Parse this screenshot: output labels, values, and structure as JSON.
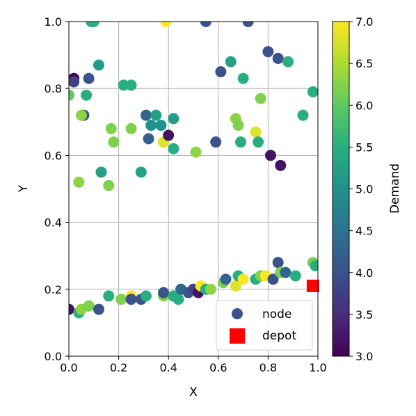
{
  "chart_data": {
    "type": "scatter",
    "xlabel": "X",
    "ylabel": "Y",
    "xlim": [
      0.0,
      1.0
    ],
    "ylim": [
      0.0,
      1.0
    ],
    "xticks": [
      "0.0",
      "0.2",
      "0.4",
      "0.6",
      "0.8",
      "1.0"
    ],
    "yticks": [
      "0.0",
      "0.2",
      "0.4",
      "0.6",
      "0.8",
      "1.0"
    ],
    "grid": true,
    "legend": {
      "position": "lower-right",
      "entries": [
        "node",
        "depot"
      ]
    },
    "colorbar": {
      "label": "Demand",
      "range": [
        3.0,
        7.0
      ],
      "ticks": [
        "3.0",
        "3.5",
        "4.0",
        "4.5",
        "5.0",
        "5.5",
        "6.0",
        "6.5",
        "7.0"
      ],
      "colormap": "viridis"
    },
    "depot": {
      "x": 0.98,
      "y": 0.21,
      "color": "#ff0000"
    },
    "series": [
      {
        "name": "node",
        "points": [
          {
            "x": 0.0,
            "y": 0.78,
            "d": 6.0
          },
          {
            "x": 0.02,
            "y": 0.83,
            "d": 3.0
          },
          {
            "x": 0.02,
            "y": 0.82,
            "d": 3.8
          },
          {
            "x": 0.06,
            "y": 0.72,
            "d": 3.9
          },
          {
            "x": 0.05,
            "y": 0.72,
            "d": 6.3
          },
          {
            "x": 0.08,
            "y": 0.83,
            "d": 4.0
          },
          {
            "x": 0.07,
            "y": 0.78,
            "d": 5.5
          },
          {
            "x": 0.09,
            "y": 1.0,
            "d": 5.5
          },
          {
            "x": 0.1,
            "y": 1.0,
            "d": 5.5
          },
          {
            "x": 0.12,
            "y": 0.87,
            "d": 5.2
          },
          {
            "x": 0.04,
            "y": 0.52,
            "d": 6.3
          },
          {
            "x": 0.13,
            "y": 0.55,
            "d": 5.3
          },
          {
            "x": 0.16,
            "y": 0.51,
            "d": 6.2
          },
          {
            "x": 0.17,
            "y": 0.68,
            "d": 6.2
          },
          {
            "x": 0.18,
            "y": 0.64,
            "d": 6.2
          },
          {
            "x": 0.22,
            "y": 0.81,
            "d": 5.5
          },
          {
            "x": 0.25,
            "y": 0.81,
            "d": 5.5
          },
          {
            "x": 0.25,
            "y": 0.68,
            "d": 6.2
          },
          {
            "x": 0.29,
            "y": 0.55,
            "d": 5.3
          },
          {
            "x": 0.31,
            "y": 0.72,
            "d": 4.3
          },
          {
            "x": 0.32,
            "y": 0.65,
            "d": 4.2
          },
          {
            "x": 0.33,
            "y": 0.69,
            "d": 5.0
          },
          {
            "x": 0.35,
            "y": 0.72,
            "d": 5.3
          },
          {
            "x": 0.37,
            "y": 0.69,
            "d": 5.0
          },
          {
            "x": 0.38,
            "y": 0.64,
            "d": 6.8
          },
          {
            "x": 0.4,
            "y": 0.66,
            "d": 3.2
          },
          {
            "x": 0.42,
            "y": 0.71,
            "d": 5.2
          },
          {
            "x": 0.42,
            "y": 0.62,
            "d": 5.5
          },
          {
            "x": 0.39,
            "y": 1.0,
            "d": 7.0
          },
          {
            "x": 0.55,
            "y": 1.0,
            "d": 4.0
          },
          {
            "x": 0.51,
            "y": 0.61,
            "d": 6.3
          },
          {
            "x": 0.59,
            "y": 0.64,
            "d": 4.0
          },
          {
            "x": 0.61,
            "y": 0.85,
            "d": 4.0
          },
          {
            "x": 0.65,
            "y": 0.88,
            "d": 5.3
          },
          {
            "x": 0.67,
            "y": 0.71,
            "d": 6.3
          },
          {
            "x": 0.68,
            "y": 0.69,
            "d": 6.2
          },
          {
            "x": 0.69,
            "y": 0.64,
            "d": 5.5
          },
          {
            "x": 0.7,
            "y": 0.83,
            "d": 5.5
          },
          {
            "x": 0.72,
            "y": 1.0,
            "d": 4.0
          },
          {
            "x": 0.75,
            "y": 0.67,
            "d": 6.8
          },
          {
            "x": 0.77,
            "y": 0.77,
            "d": 6.2
          },
          {
            "x": 0.76,
            "y": 0.64,
            "d": 5.5
          },
          {
            "x": 0.8,
            "y": 0.91,
            "d": 4.0
          },
          {
            "x": 0.81,
            "y": 0.6,
            "d": 3.2
          },
          {
            "x": 0.84,
            "y": 0.89,
            "d": 4.0
          },
          {
            "x": 0.88,
            "y": 0.88,
            "d": 5.5
          },
          {
            "x": 0.85,
            "y": 0.57,
            "d": 3.2
          },
          {
            "x": 0.94,
            "y": 0.72,
            "d": 5.5
          },
          {
            "x": 0.98,
            "y": 0.79,
            "d": 5.5
          },
          {
            "x": 0.0,
            "y": 0.14,
            "d": 3.2
          },
          {
            "x": 0.04,
            "y": 0.13,
            "d": 5.5
          },
          {
            "x": 0.05,
            "y": 0.14,
            "d": 6.3
          },
          {
            "x": 0.08,
            "y": 0.15,
            "d": 5.5
          },
          {
            "x": 0.08,
            "y": 0.15,
            "d": 6.2
          },
          {
            "x": 0.12,
            "y": 0.14,
            "d": 4.0
          },
          {
            "x": 0.16,
            "y": 0.18,
            "d": 5.5
          },
          {
            "x": 0.21,
            "y": 0.17,
            "d": 6.2
          },
          {
            "x": 0.25,
            "y": 0.18,
            "d": 7.0
          },
          {
            "x": 0.25,
            "y": 0.17,
            "d": 4.0
          },
          {
            "x": 0.29,
            "y": 0.17,
            "d": 4.0
          },
          {
            "x": 0.31,
            "y": 0.18,
            "d": 5.5
          },
          {
            "x": 0.38,
            "y": 0.18,
            "d": 6.2
          },
          {
            "x": 0.38,
            "y": 0.19,
            "d": 4.0
          },
          {
            "x": 0.42,
            "y": 0.18,
            "d": 5.5
          },
          {
            "x": 0.44,
            "y": 0.17,
            "d": 5.5
          },
          {
            "x": 0.45,
            "y": 0.2,
            "d": 4.3
          },
          {
            "x": 0.48,
            "y": 0.19,
            "d": 4.0
          },
          {
            "x": 0.5,
            "y": 0.2,
            "d": 3.8
          },
          {
            "x": 0.52,
            "y": 0.19,
            "d": 3.2
          },
          {
            "x": 0.53,
            "y": 0.21,
            "d": 7.0
          },
          {
            "x": 0.55,
            "y": 0.2,
            "d": 5.5
          },
          {
            "x": 0.57,
            "y": 0.2,
            "d": 6.3
          },
          {
            "x": 0.62,
            "y": 0.22,
            "d": 6.2
          },
          {
            "x": 0.63,
            "y": 0.23,
            "d": 4.3
          },
          {
            "x": 0.67,
            "y": 0.21,
            "d": 6.8
          },
          {
            "x": 0.68,
            "y": 0.24,
            "d": 5.5
          },
          {
            "x": 0.7,
            "y": 0.23,
            "d": 7.0
          },
          {
            "x": 0.75,
            "y": 0.23,
            "d": 5.5
          },
          {
            "x": 0.77,
            "y": 0.24,
            "d": 6.2
          },
          {
            "x": 0.79,
            "y": 0.24,
            "d": 7.0
          },
          {
            "x": 0.82,
            "y": 0.23,
            "d": 4.0
          },
          {
            "x": 0.84,
            "y": 0.28,
            "d": 4.0
          },
          {
            "x": 0.85,
            "y": 0.25,
            "d": 6.2
          },
          {
            "x": 0.87,
            "y": 0.25,
            "d": 4.3
          },
          {
            "x": 0.91,
            "y": 0.24,
            "d": 5.5
          },
          {
            "x": 0.98,
            "y": 0.28,
            "d": 6.2
          },
          {
            "x": 0.99,
            "y": 0.27,
            "d": 5.5
          }
        ]
      }
    ]
  }
}
